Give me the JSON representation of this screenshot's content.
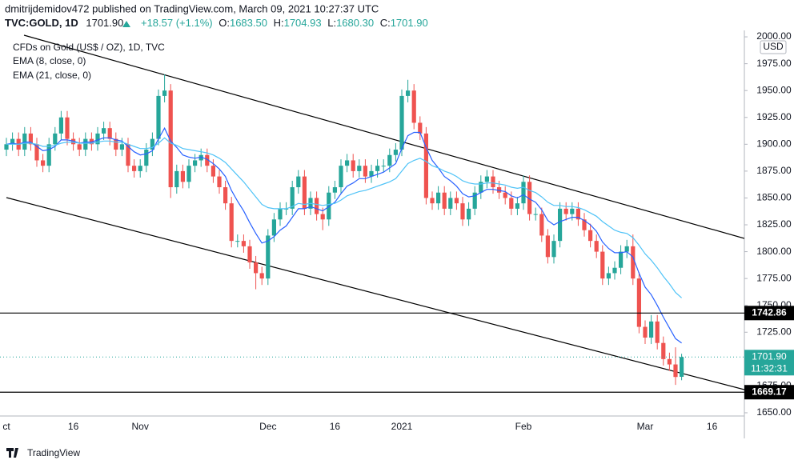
{
  "header": {
    "line1": "dmitrijdemidov472 published on TradingView.com, March 09, 2021 10:27:37 UTC",
    "symbol": "TVC:GOLD, 1D",
    "price": "1701.90",
    "change": "+18.57 (+1.1%)",
    "ohlc": [
      [
        "O:",
        "1683.50"
      ],
      [
        "H:",
        "1704.93"
      ],
      [
        "L:",
        "1680.30"
      ],
      [
        "C:",
        "1701.90"
      ]
    ]
  },
  "footer": "TradingView",
  "chart_data": {
    "type": "candlestick",
    "currency": "USD",
    "categories": [
      "ct",
      null,
      null,
      null,
      null,
      null,
      null,
      null,
      null,
      null,
      null,
      "16",
      null,
      null,
      null,
      null,
      null,
      null,
      null,
      null,
      null,
      null,
      "Nov",
      null,
      null,
      null,
      null,
      null,
      null,
      null,
      null,
      null,
      null,
      null,
      null,
      null,
      null,
      null,
      null,
      null,
      null,
      null,
      null,
      "Dec",
      null,
      null,
      null,
      null,
      null,
      null,
      null,
      null,
      null,
      null,
      "16",
      null,
      null,
      null,
      null,
      null,
      null,
      null,
      null,
      null,
      null,
      "2021",
      null,
      null,
      null,
      null,
      null,
      null,
      null,
      null,
      null,
      null,
      null,
      null,
      null,
      null,
      null,
      null,
      null,
      null,
      null,
      "Feb",
      null,
      null,
      null,
      null,
      null,
      null,
      null,
      null,
      null,
      null,
      null,
      null,
      null,
      null,
      null,
      null,
      null,
      null,
      null,
      "Mar",
      null,
      null,
      null,
      null,
      null,
      null,
      null,
      null,
      null,
      null,
      "16",
      null,
      null,
      null,
      null,
      null
    ],
    "series": [
      {
        "name": "CFDs on Gold (US$ / OZ), 1D, TVC",
        "up_color": "#26a69a",
        "down_color": "#ef5350",
        "open": [
          1895,
          1900,
          1905,
          1895,
          1910,
          1900,
          1885,
          1880,
          1900,
          1910,
          1925,
          1905,
          1900,
          1895,
          1905,
          1900,
          1910,
          1915,
          1905,
          1895,
          1900,
          1880,
          1875,
          1880,
          1895,
          1905,
          1945,
          1950,
          1860,
          1875,
          1865,
          1880,
          1885,
          1890,
          1880,
          1870,
          1860,
          1845,
          1810,
          1810,
          1805,
          1790,
          1780,
          1775,
          1815,
          1830,
          1840,
          1840,
          1860,
          1870,
          1840,
          1850,
          1835,
          1830,
          1855,
          1860,
          1880,
          1885,
          1875,
          1880,
          1870,
          1875,
          1880,
          1880,
          1890,
          1895,
          1945,
          1950,
          1920,
          1910,
          1850,
          1845,
          1855,
          1840,
          1850,
          1845,
          1830,
          1840,
          1855,
          1865,
          1870,
          1860,
          1855,
          1850,
          1840,
          1845,
          1865,
          1835,
          1835,
          1815,
          1795,
          1810,
          1840,
          1835,
          1840,
          1830,
          1820,
          1810,
          1800,
          1775,
          1780,
          1785,
          1800,
          1805,
          1775,
          1730,
          1720,
          1735,
          1715,
          1700,
          1695,
          1683.5,
          null,
          null,
          null,
          null,
          null,
          null,
          null,
          null,
          null,
          null
        ],
        "high": [
          1906,
          1911,
          1911,
          1916,
          1916,
          1906,
          1891,
          1906,
          1916,
          1931,
          1931,
          1911,
          1906,
          1911,
          1911,
          1916,
          1921,
          1921,
          1911,
          1906,
          1906,
          1886,
          1886,
          1901,
          1911,
          1951,
          1965,
          1956,
          1881,
          1881,
          1886,
          1891,
          1896,
          1896,
          1886,
          1876,
          1866,
          1851,
          1816,
          1816,
          1811,
          1796,
          1786,
          1821,
          1836,
          1846,
          1846,
          1866,
          1876,
          1876,
          1856,
          1856,
          1841,
          1861,
          1866,
          1886,
          1891,
          1891,
          1886,
          1886,
          1881,
          1886,
          1886,
          1896,
          1901,
          1951,
          1960,
          1956,
          1926,
          1916,
          1856,
          1861,
          1861,
          1856,
          1856,
          1851,
          1846,
          1861,
          1871,
          1876,
          1876,
          1866,
          1861,
          1856,
          1851,
          1871,
          1871,
          1841,
          1841,
          1821,
          1816,
          1846,
          1846,
          1846,
          1846,
          1836,
          1826,
          1816,
          1806,
          1786,
          1791,
          1806,
          1811,
          1816,
          1781,
          1736,
          1741,
          1741,
          1721,
          1706,
          1711,
          1704.93,
          null,
          null,
          null,
          null,
          null,
          null,
          null,
          null,
          null,
          null
        ],
        "low": [
          1889,
          1894,
          1889,
          1889,
          1894,
          1879,
          1874,
          1874,
          1894,
          1904,
          1899,
          1894,
          1889,
          1889,
          1894,
          1894,
          1904,
          1899,
          1889,
          1889,
          1874,
          1869,
          1869,
          1874,
          1889,
          1899,
          1939,
          1850,
          1854,
          1859,
          1859,
          1874,
          1879,
          1874,
          1864,
          1854,
          1839,
          1804,
          1804,
          1799,
          1784,
          1765,
          1769,
          1769,
          1809,
          1824,
          1834,
          1834,
          1854,
          1834,
          1834,
          1829,
          1820,
          1824,
          1849,
          1854,
          1874,
          1869,
          1869,
          1864,
          1864,
          1869,
          1874,
          1874,
          1884,
          1889,
          1939,
          1914,
          1904,
          1844,
          1839,
          1839,
          1834,
          1834,
          1839,
          1824,
          1824,
          1834,
          1849,
          1859,
          1854,
          1849,
          1844,
          1834,
          1834,
          1839,
          1829,
          1829,
          1809,
          1789,
          1789,
          1804,
          1829,
          1829,
          1824,
          1814,
          1804,
          1794,
          1769,
          1769,
          1774,
          1779,
          1794,
          1769,
          1724,
          1714,
          1714,
          1709,
          1694,
          1689,
          1676,
          1680.3,
          null,
          null,
          null,
          null,
          null,
          null,
          null,
          null,
          null,
          null
        ],
        "close": [
          1900,
          1905,
          1895,
          1910,
          1900,
          1885,
          1880,
          1900,
          1910,
          1925,
          1905,
          1900,
          1895,
          1905,
          1900,
          1910,
          1915,
          1905,
          1895,
          1900,
          1880,
          1875,
          1880,
          1895,
          1905,
          1945,
          1950,
          1860,
          1875,
          1865,
          1880,
          1885,
          1890,
          1880,
          1870,
          1860,
          1845,
          1810,
          1810,
          1805,
          1790,
          1780,
          1775,
          1815,
          1830,
          1840,
          1840,
          1860,
          1870,
          1840,
          1850,
          1835,
          1830,
          1855,
          1860,
          1880,
          1885,
          1875,
          1880,
          1870,
          1875,
          1880,
          1880,
          1890,
          1895,
          1945,
          1950,
          1920,
          1910,
          1850,
          1845,
          1855,
          1840,
          1850,
          1845,
          1830,
          1840,
          1855,
          1865,
          1870,
          1860,
          1855,
          1850,
          1840,
          1845,
          1865,
          1835,
          1835,
          1815,
          1795,
          1810,
          1840,
          1835,
          1840,
          1830,
          1820,
          1810,
          1800,
          1775,
          1780,
          1785,
          1800,
          1805,
          1775,
          1730,
          1720,
          1735,
          1715,
          1700,
          1695,
          1683.33,
          1701.9,
          null,
          null,
          null,
          null,
          null,
          null,
          null,
          null,
          null,
          null
        ]
      },
      {
        "name": "EMA (8, close, 0)",
        "color": "#2962ff",
        "values": [
          1900,
          1901,
          1900,
          1902,
          1902,
          1898,
          1894,
          1895,
          1898,
          1904,
          1904,
          1903,
          1901,
          1902,
          1902,
          1904,
          1906,
          1906,
          1904,
          1903,
          1898,
          1893,
          1890,
          1891,
          1894,
          1905,
          1915,
          1903,
          1897,
          1890,
          1888,
          1887,
          1888,
          1886,
          1882,
          1877,
          1870,
          1857,
          1847,
          1838,
          1827,
          1817,
          1808,
          1810,
          1814,
          1820,
          1824,
          1832,
          1840,
          1840,
          1842,
          1840,
          1838,
          1842,
          1846,
          1854,
          1861,
          1864,
          1868,
          1868,
          1870,
          1872,
          1874,
          1878,
          1882,
          1896,
          1908,
          1911,
          1911,
          1897,
          1885,
          1878,
          1870,
          1866,
          1861,
          1854,
          1851,
          1852,
          1855,
          1858,
          1858,
          1857,
          1856,
          1852,
          1850,
          1853,
          1849,
          1846,
          1839,
          1829,
          1825,
          1828,
          1830,
          1832,
          1832,
          1829,
          1825,
          1819,
          1809,
          1803,
          1799,
          1799,
          1800,
          1795,
          1780,
          1767,
          1760,
          1750,
          1739,
          1729,
          1719,
          1715,
          null,
          null,
          null,
          null,
          null,
          null,
          null,
          null,
          null,
          null
        ]
      },
      {
        "name": "EMA (21, close, 0)",
        "color": "#4fc3f7",
        "values": [
          1900,
          1900,
          1900,
          1901,
          1901,
          1900,
          1898,
          1898,
          1899,
          1901,
          1902,
          1902,
          1901,
          1901,
          1901,
          1902,
          1903,
          1903,
          1902,
          1902,
          1900,
          1898,
          1896,
          1896,
          1897,
          1901,
          1906,
          1901,
          1899,
          1896,
          1895,
          1894,
          1893,
          1892,
          1890,
          1887,
          1883,
          1877,
          1871,
          1865,
          1858,
          1851,
          1844,
          1841,
          1840,
          1840,
          1840,
          1842,
          1845,
          1844,
          1845,
          1844,
          1843,
          1844,
          1845,
          1848,
          1852,
          1854,
          1856,
          1857,
          1859,
          1861,
          1863,
          1865,
          1868,
          1875,
          1882,
          1885,
          1887,
          1884,
          1880,
          1878,
          1875,
          1873,
          1870,
          1866,
          1864,
          1863,
          1863,
          1864,
          1864,
          1863,
          1862,
          1860,
          1859,
          1860,
          1857,
          1855,
          1851,
          1846,
          1843,
          1843,
          1842,
          1842,
          1841,
          1839,
          1836,
          1833,
          1828,
          1824,
          1820,
          1818,
          1817,
          1813,
          1806,
          1798,
          1792,
          1785,
          1777,
          1770,
          1762,
          1757,
          null,
          null,
          null,
          null,
          null,
          null,
          null,
          null,
          null,
          null
        ]
      }
    ],
    "ylim": [
      1647,
      2006
    ],
    "yticks": [
      {
        "value": 1650,
        "label": "1650.00"
      },
      {
        "value": 1675,
        "label": "1675.00"
      },
      {
        "value": 1700,
        "label": "1700.00"
      },
      {
        "value": 1725,
        "label": "1725.00"
      },
      {
        "value": 1750,
        "label": "1750.00"
      },
      {
        "value": 1775,
        "label": "1775.00"
      },
      {
        "value": 1800,
        "label": "1800.00"
      },
      {
        "value": 1825,
        "label": "1825.00"
      },
      {
        "value": 1850,
        "label": "1850.00"
      },
      {
        "value": 1875,
        "label": "1875.00"
      },
      {
        "value": 1900,
        "label": "1900.00"
      },
      {
        "value": 1925,
        "label": "1925.00"
      },
      {
        "value": 1950,
        "label": "1950.00"
      },
      {
        "value": 1975,
        "label": "1975.00"
      },
      {
        "value": 2000,
        "label": "2000.00"
      }
    ],
    "grid": false,
    "price_lines": [
      {
        "value": 1742.86,
        "label": "1742.86",
        "color": "#000000"
      },
      {
        "value": 1669.17,
        "label": "1669.17",
        "color": "#000000"
      }
    ],
    "last_price": {
      "value": 1701.9,
      "label": "1701.90",
      "countdown": "11:32:31",
      "color": "#26a69a"
    }
  }
}
